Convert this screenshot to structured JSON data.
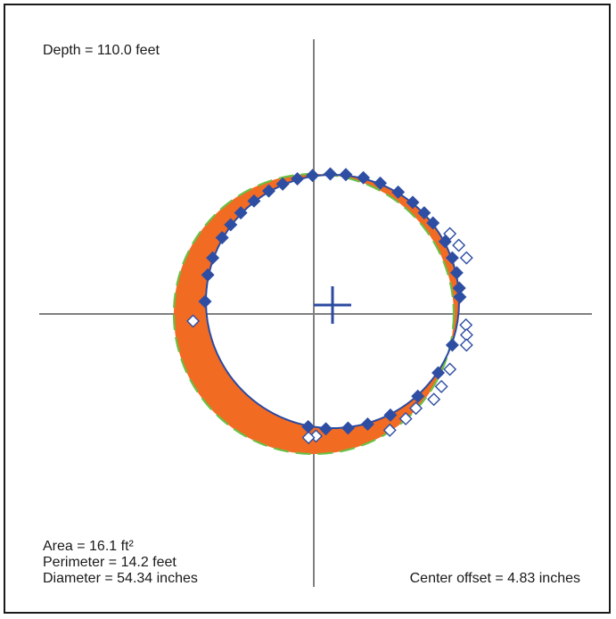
{
  "labels": {
    "depth": "Depth = 110.0 feet",
    "area": "Area = 16.1 ft²",
    "perimeter": "Perimeter = 14.2 feet",
    "diameter": "Diameter = 54.34 inches",
    "center_offset": "Center offset = 4.83 inches"
  },
  "colors": {
    "frame": "#1a1a1a",
    "axes": "#808080",
    "measured_circle": "#2b4aa0",
    "nominal_circle": "#6abf45",
    "deviation_fill": "#f26b23",
    "marker": "#2e4ea3"
  },
  "icons": {
    "center": "plus-cross",
    "filled_marker": "diamond-filled",
    "open_marker": "diamond-open"
  }
}
